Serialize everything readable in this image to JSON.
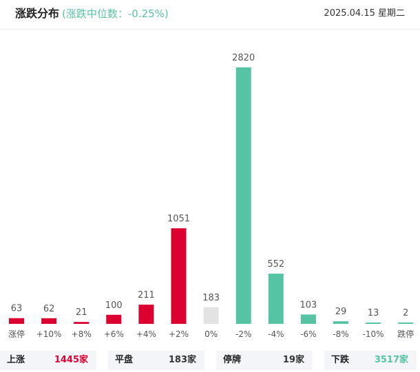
{
  "header": {
    "title": "涨跌分布",
    "subtitle": "(涨跌中位数：-0.25%)",
    "date": "2025.04.15 星期二"
  },
  "colors": {
    "up": "#dc0030",
    "flat": "#e3e3e3",
    "down": "#56c3a4"
  },
  "chart_data": {
    "type": "bar",
    "title": "涨跌分布",
    "categories": [
      "涨停",
      "+10%",
      "+8%",
      "+6%",
      "+4%",
      "+2%",
      "0%",
      "-2%",
      "-4%",
      "-6%",
      "-8%",
      "-10%",
      "跌停"
    ],
    "values": [
      63,
      62,
      21,
      100,
      211,
      1051,
      183,
      2820,
      552,
      103,
      29,
      13,
      2
    ],
    "bar_colors": [
      "up",
      "up",
      "up",
      "up",
      "up",
      "up",
      "flat",
      "down",
      "down",
      "down",
      "down",
      "down",
      "down"
    ],
    "ylim": [
      0,
      2820
    ],
    "grid": false,
    "data_labels": true
  },
  "summary": [
    {
      "label": "上涨",
      "value": "1445家",
      "color": "#dc0030"
    },
    {
      "label": "平盘",
      "value": "183家",
      "color": "#333333"
    },
    {
      "label": "停牌",
      "value": "19家",
      "color": "#333333"
    },
    {
      "label": "下跌",
      "value": "3517家",
      "color": "#56c3a4"
    }
  ]
}
